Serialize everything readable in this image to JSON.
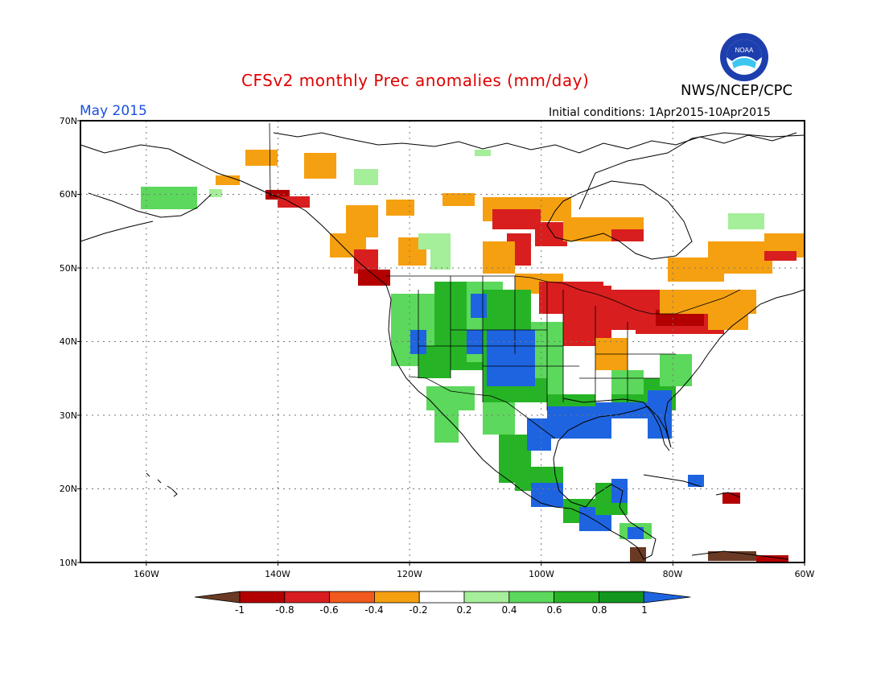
{
  "title": "CFSv2 monthly Prec anomalies (mm/day)",
  "subtitle_month": "May 2015",
  "agency": "NWS/NCEP/CPC",
  "logo_text": "NOAA",
  "initial_conditions": "Initial conditions: 1Apr2015-10Apr2015",
  "map": {
    "lon_range": [
      -170,
      -60
    ],
    "lat_range": [
      10,
      70
    ],
    "grid": "dotted",
    "lat_ticks": [
      "70N",
      "60N",
      "50N",
      "40N",
      "30N",
      "20N",
      "10N"
    ],
    "lon_ticks": [
      "160W",
      "140W",
      "120W",
      "100W",
      "80W",
      "60W"
    ]
  },
  "colorbar": {
    "labels": [
      "-1",
      "-0.8",
      "-0.6",
      "-0.4",
      "-0.2",
      "0.2",
      "0.4",
      "0.6",
      "0.8",
      "1"
    ],
    "colors": [
      "#6b3a24",
      "#b30000",
      "#d81e1e",
      "#f05a1e",
      "#f5a010",
      "#ffffff",
      "#a5ee9a",
      "#5cd85c",
      "#26b426",
      "#12961e",
      "#1e64e0"
    ]
  },
  "colors": {
    "title": "#e00000",
    "month": "#1a4fe0",
    "coast": "#000000"
  }
}
